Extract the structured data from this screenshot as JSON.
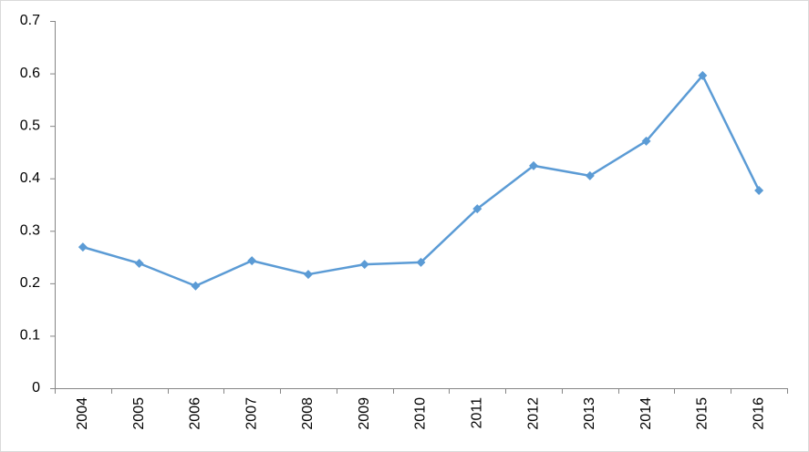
{
  "chart_data": {
    "type": "line",
    "categories": [
      "2004",
      "2005",
      "2006",
      "2007",
      "2008",
      "2009",
      "2010",
      "2011",
      "2012",
      "2013",
      "2014",
      "2015",
      "2016"
    ],
    "values": [
      0.269,
      0.238,
      0.195,
      0.243,
      0.217,
      0.236,
      0.24,
      0.342,
      0.424,
      0.405,
      0.471,
      0.596,
      0.377
    ],
    "color": "#5b9bd5",
    "ylim": [
      0,
      0.7
    ],
    "yticks": [
      0,
      0.1,
      0.2,
      0.3,
      0.4,
      0.5,
      0.6,
      0.7
    ],
    "grid": false
  }
}
